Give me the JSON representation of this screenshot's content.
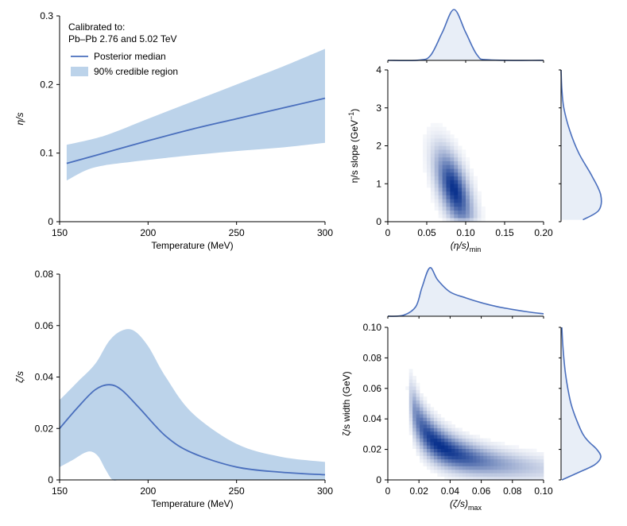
{
  "colors": {
    "band": "#bcd3ea",
    "line": "#4a6fbd",
    "density": "#08306b",
    "marginal_fill": "#e8eef7",
    "axis": "#000000"
  },
  "legend": {
    "title_line1": "Calibrated to:",
    "title_line2": "Pb–Pb 2.76 and 5.02 TeV",
    "line_label": "Posterior median",
    "band_label": "90% credible region"
  },
  "chart_data": [
    {
      "id": "eta",
      "type": "area",
      "xlabel": "Temperature (MeV)",
      "ylabel": "η/s",
      "xlim": [
        150,
        300
      ],
      "ylim": [
        0,
        0.3
      ],
      "xticks": [
        150,
        200,
        250,
        300
      ],
      "yticks": [
        0,
        0.1,
        0.2,
        0.3
      ],
      "ytick_labels": [
        "0",
        "0.1",
        "0.2",
        "0.3"
      ],
      "xtick_labels": [
        "150",
        "200",
        "250",
        "300"
      ],
      "median": {
        "x": [
          154,
          175,
          200,
          225,
          250,
          275,
          300
        ],
        "y": [
          0.085,
          0.1,
          0.118,
          0.135,
          0.15,
          0.165,
          0.18
        ]
      },
      "band_upper": {
        "x": [
          154,
          175,
          200,
          225,
          250,
          275,
          300
        ],
        "y": [
          0.112,
          0.125,
          0.15,
          0.175,
          0.2,
          0.225,
          0.252
        ]
      },
      "band_lower": {
        "x": [
          154,
          165,
          175,
          190,
          200,
          225,
          250,
          275,
          300
        ],
        "y": [
          0.06,
          0.075,
          0.082,
          0.087,
          0.09,
          0.097,
          0.103,
          0.108,
          0.115
        ]
      }
    },
    {
      "id": "zeta",
      "type": "area",
      "xlabel": "Temperature (MeV)",
      "ylabel": "ζ/s",
      "xlim": [
        150,
        300
      ],
      "ylim": [
        0,
        0.08
      ],
      "xticks": [
        150,
        200,
        250,
        300
      ],
      "yticks": [
        0,
        0.02,
        0.04,
        0.06,
        0.08
      ],
      "ytick_labels": [
        "0",
        "0.02",
        "0.04",
        "0.06",
        "0.08"
      ],
      "xtick_labels": [
        "150",
        "200",
        "250",
        "300"
      ],
      "median": {
        "x": [
          150,
          160,
          170,
          178,
          185,
          195,
          210,
          225,
          250,
          275,
          300
        ],
        "y": [
          0.02,
          0.028,
          0.035,
          0.037,
          0.035,
          0.028,
          0.017,
          0.0105,
          0.005,
          0.003,
          0.002
        ]
      },
      "band_upper": {
        "x": [
          150,
          160,
          170,
          178,
          185,
          192,
          200,
          210,
          225,
          250,
          275,
          300
        ],
        "y": [
          0.031,
          0.038,
          0.045,
          0.054,
          0.058,
          0.058,
          0.052,
          0.04,
          0.026,
          0.014,
          0.009,
          0.007
        ]
      },
      "band_lower": {
        "x": [
          150,
          158,
          164,
          168,
          172,
          176,
          180,
          185,
          200,
          250,
          300
        ],
        "y": [
          0.005,
          0.008,
          0.0105,
          0.011,
          0.009,
          0.004,
          0.0,
          0.0,
          0.0,
          0.0,
          0.0
        ]
      }
    },
    {
      "id": "eta_posterior",
      "type": "heatmap",
      "xlabel": "(η/s)",
      "xlabel_sub": "min",
      "ylabel": "η/s slope (GeV",
      "ylabel_sup": "−1",
      "ylabel_end": ")",
      "xlim": [
        0,
        0.2
      ],
      "ylim": [
        0,
        4
      ],
      "xticks": [
        0,
        0.05,
        0.1,
        0.15,
        0.2
      ],
      "xtick_labels": [
        "0",
        "0.05",
        "0.10",
        "0.15",
        "0.20"
      ],
      "yticks": [
        0,
        1,
        2,
        3,
        4
      ],
      "ytick_labels": [
        "0",
        "1",
        "2",
        "3",
        "4"
      ],
      "peak": {
        "x": 0.085,
        "y": 0.85
      },
      "top_marginal": {
        "x": [
          0.0,
          0.04,
          0.055,
          0.07,
          0.085,
          0.1,
          0.115,
          0.13,
          0.2
        ],
        "y": [
          0.0,
          0.005,
          0.1,
          0.55,
          1.0,
          0.55,
          0.1,
          0.01,
          0.0
        ]
      },
      "right_marginal": {
        "y": [
          0.05,
          0.3,
          0.7,
          1.2,
          1.8,
          2.4,
          3.0,
          3.5,
          4.0
        ],
        "x": [
          0.55,
          0.95,
          1.0,
          0.78,
          0.45,
          0.22,
          0.07,
          0.02,
          0.0
        ]
      }
    },
    {
      "id": "zeta_posterior",
      "type": "heatmap",
      "xlabel": "(ζ/s)",
      "xlabel_sub": "max",
      "ylabel": "ζ/s width (GeV)",
      "xlim": [
        0,
        0.1
      ],
      "ylim": [
        0,
        0.1
      ],
      "xticks": [
        0,
        0.02,
        0.04,
        0.06,
        0.08,
        0.1
      ],
      "xtick_labels": [
        "0",
        "0.02",
        "0.04",
        "0.06",
        "0.08",
        "0.10"
      ],
      "yticks": [
        0,
        0.02,
        0.04,
        0.06,
        0.08,
        0.1
      ],
      "ytick_labels": [
        "0",
        "0.02",
        "0.04",
        "0.06",
        "0.08",
        "0.10"
      ],
      "ridge_const": 0.00075,
      "top_marginal": {
        "x": [
          0.0,
          0.01,
          0.018,
          0.022,
          0.027,
          0.032,
          0.04,
          0.05,
          0.06,
          0.07,
          0.08,
          0.09,
          0.1
        ],
        "y": [
          0.0,
          0.02,
          0.2,
          0.6,
          1.0,
          0.75,
          0.5,
          0.38,
          0.28,
          0.2,
          0.14,
          0.09,
          0.05
        ]
      },
      "right_marginal": {
        "y": [
          0.0,
          0.005,
          0.01,
          0.015,
          0.02,
          0.025,
          0.03,
          0.04,
          0.05,
          0.06,
          0.07,
          0.08,
          0.09,
          0.1
        ],
        "x": [
          0.02,
          0.45,
          0.85,
          1.0,
          0.9,
          0.7,
          0.55,
          0.38,
          0.25,
          0.17,
          0.11,
          0.07,
          0.04,
          0.02
        ]
      }
    }
  ]
}
